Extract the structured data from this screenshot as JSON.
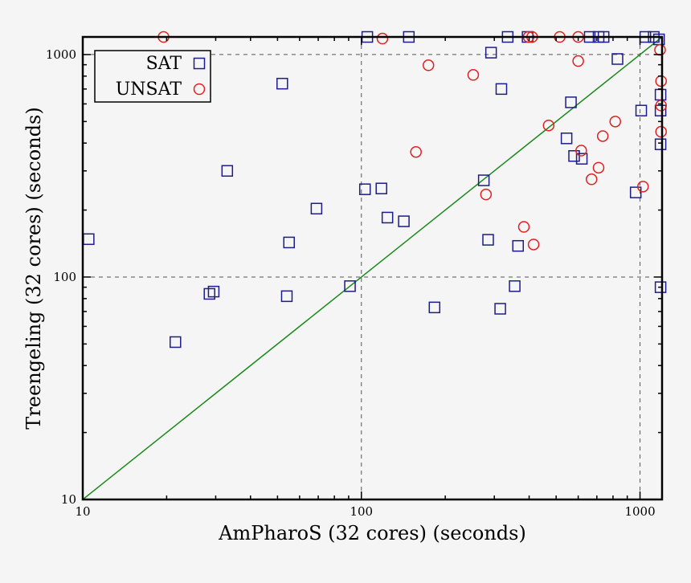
{
  "chart_data": {
    "type": "scatter",
    "xlabel": "AmPharoS (32 cores) (seconds)",
    "ylabel": "Treengeling (32 cores) (seconds)",
    "x_scale": "log",
    "y_scale": "log",
    "xlim": [
      10,
      1200
    ],
    "ylim": [
      10,
      1200
    ],
    "x_ticks": [
      "10",
      "100",
      "1000"
    ],
    "y_ticks": [
      "10",
      "100",
      "1000"
    ],
    "grid": "dashed lines at 100 and 1000 on both axes",
    "diagonal": {
      "from": [
        10,
        10
      ],
      "to": [
        1200,
        1200
      ],
      "color": "#1a8a1a"
    },
    "legend_position": "top-left",
    "series": [
      {
        "name": "SAT",
        "marker": "square",
        "color": "#1c1c8c",
        "points": [
          [
            10.5,
            148
          ],
          [
            21.5,
            51
          ],
          [
            28.5,
            84
          ],
          [
            29.5,
            86
          ],
          [
            33,
            300
          ],
          [
            52,
            740
          ],
          [
            54,
            82
          ],
          [
            55,
            143
          ],
          [
            69,
            203
          ],
          [
            91,
            91
          ],
          [
            103,
            248
          ],
          [
            105,
            1200
          ],
          [
            118,
            250
          ],
          [
            124,
            185
          ],
          [
            142,
            178
          ],
          [
            148,
            1200
          ],
          [
            183,
            73
          ],
          [
            275,
            272
          ],
          [
            285,
            147
          ],
          [
            292,
            1020
          ],
          [
            315,
            72
          ],
          [
            318,
            700
          ],
          [
            335,
            1200
          ],
          [
            355,
            91
          ],
          [
            365,
            138
          ],
          [
            395,
            1200
          ],
          [
            545,
            420
          ],
          [
            565,
            610
          ],
          [
            580,
            350
          ],
          [
            618,
            340
          ],
          [
            660,
            1200
          ],
          [
            710,
            1200
          ],
          [
            740,
            1200
          ],
          [
            830,
            955
          ],
          [
            965,
            240
          ],
          [
            1010,
            560
          ],
          [
            1045,
            1200
          ],
          [
            1120,
            1200
          ],
          [
            1170,
            1170
          ],
          [
            1185,
            660
          ],
          [
            1185,
            560
          ],
          [
            1185,
            395
          ],
          [
            1185,
            90
          ]
        ]
      },
      {
        "name": "UNSAT",
        "marker": "circle",
        "color": "#e02020",
        "points": [
          [
            19.5,
            1200
          ],
          [
            119,
            1180
          ],
          [
            157,
            365
          ],
          [
            174,
            895
          ],
          [
            252,
            810
          ],
          [
            280,
            235
          ],
          [
            383,
            168
          ],
          [
            398,
            1200
          ],
          [
            410,
            1200
          ],
          [
            415,
            140
          ],
          [
            470,
            480
          ],
          [
            515,
            1200
          ],
          [
            600,
            1200
          ],
          [
            600,
            935
          ],
          [
            615,
            370
          ],
          [
            670,
            275
          ],
          [
            710,
            310
          ],
          [
            735,
            430
          ],
          [
            815,
            500
          ],
          [
            1025,
            255
          ],
          [
            1180,
            1050
          ],
          [
            1190,
            760
          ],
          [
            1190,
            590
          ],
          [
            1190,
            450
          ]
        ]
      }
    ]
  }
}
